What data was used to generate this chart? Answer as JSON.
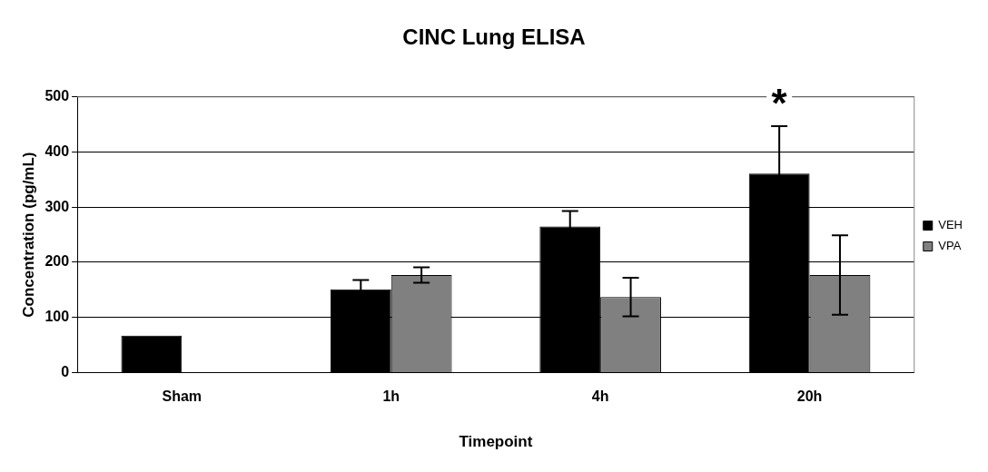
{
  "chart_data": {
    "type": "bar",
    "title": "CINC Lung ELISA",
    "xlabel": "Timepoint",
    "ylabel": "Concentration (pg/mL)",
    "categories": [
      "Sham",
      "1h",
      "4h",
      "20h"
    ],
    "series": [
      {
        "name": "VEH",
        "color": "#000000",
        "values": [
          67,
          151,
          265,
          361
        ],
        "errors": [
          null,
          17,
          28,
          86
        ]
      },
      {
        "name": "VPA",
        "color": "#808080",
        "values": [
          null,
          177,
          137,
          177
        ],
        "errors": [
          null,
          14,
          35,
          72
        ]
      }
    ],
    "ylim": [
      0,
      500
    ],
    "yticks": [
      0,
      100,
      200,
      300,
      400,
      500
    ],
    "grid": "y",
    "legend": "right",
    "annotations": [
      "*"
    ]
  }
}
